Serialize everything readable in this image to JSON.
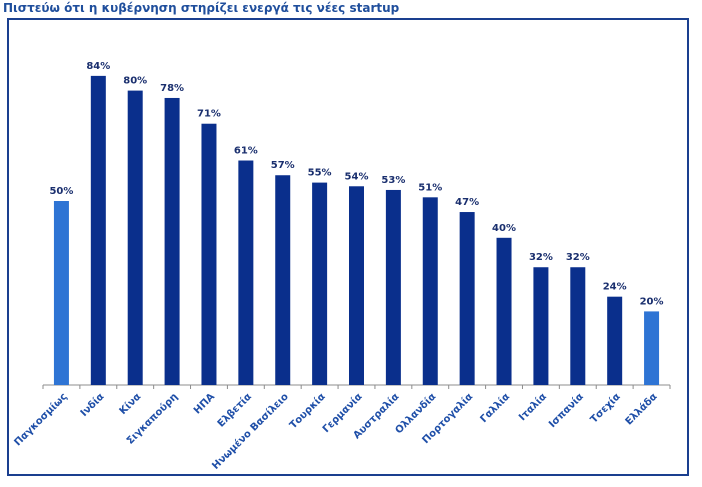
{
  "chart_data": {
    "type": "bar",
    "title": "Πιστεύω ότι η κυβέρνηση στηρίζει ενεργά τις νέες startup",
    "categories": [
      "Παγκοσμίως",
      "Ινδία",
      "Κίνα",
      "Σιγκαπούρη",
      "ΗΠΑ",
      "Ελβετία",
      "Ηνωμένο Βασίλειο",
      "Τουρκία",
      "Γερμανία",
      "Αυστραλία",
      "Ολλανδία",
      "Πορτογαλία",
      "Γαλλία",
      "Ιταλία",
      "Ισπανία",
      "Τσεχία",
      "Ελλάδα"
    ],
    "values": [
      50,
      84,
      80,
      78,
      71,
      61,
      57,
      55,
      54,
      53,
      51,
      47,
      40,
      32,
      32,
      24,
      20
    ],
    "value_labels": [
      "50%",
      "84%",
      "80%",
      "78%",
      "71%",
      "61%",
      "57%",
      "55%",
      "54%",
      "53%",
      "51%",
      "47%",
      "40%",
      "32%",
      "32%",
      "24%",
      "20%"
    ],
    "highlighted": [
      "Παγκοσμίως",
      "Ελλάδα"
    ],
    "colors": {
      "default": "#0a2f8c",
      "highlight": "#2e74d4",
      "axis": "#8c8c8c"
    },
    "ylim": [
      0,
      100
    ],
    "grid": false,
    "legend": "none",
    "xlabel": "",
    "ylabel": ""
  }
}
